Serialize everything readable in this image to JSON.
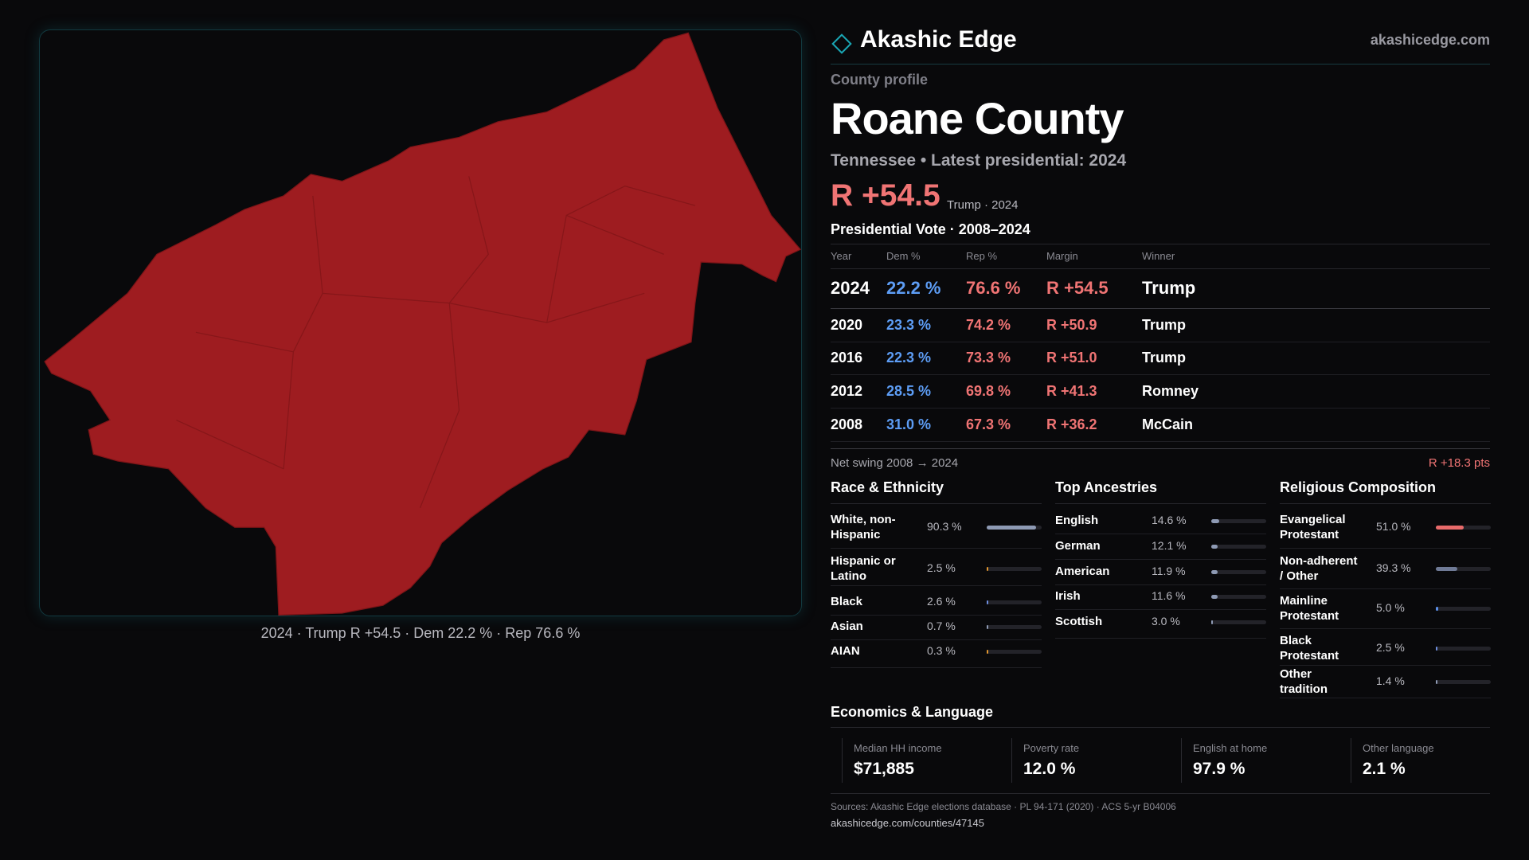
{
  "header": {
    "brand": "Akashic Edge",
    "site": "akashicedge.com"
  },
  "map": {
    "caption": "2024 · Trump R +54.5 · Dem 22.2 % · Rep 76.6 %"
  },
  "profile": {
    "kicker": "County profile",
    "title": "Roane County",
    "subtitle": "Tennessee • Latest presidential: 2024",
    "headline_margin": "R +54.5",
    "headline_note": "Trump · 2024"
  },
  "vote_table": {
    "title": "Presidential Vote · 2008–2024",
    "columns": [
      "Year",
      "Dem %",
      "Rep %",
      "Margin",
      "Winner"
    ],
    "rows": [
      [
        "2024",
        "22.2 %",
        "76.6 %",
        "R +54.5",
        "Trump"
      ],
      [
        "2020",
        "23.3 %",
        "74.2 %",
        "R +50.9",
        "Trump"
      ],
      [
        "2016",
        "22.3 %",
        "73.3 %",
        "R +51.0",
        "Trump"
      ],
      [
        "2012",
        "28.5 %",
        "69.8 %",
        "R +41.3",
        "Romney"
      ],
      [
        "2008",
        "31.0 %",
        "67.3 %",
        "R +36.2",
        "McCain"
      ]
    ],
    "swing_label": "Net swing 2008 → 2024",
    "swing_value": "R +18.3 pts"
  },
  "race": {
    "title": "Race & Ethnicity",
    "rows": [
      {
        "label": "White, non-Hispanic",
        "value": 90.3,
        "value_label": "90.3 %",
        "color": "#8e9ab4"
      },
      {
        "label": "Hispanic or Latino",
        "value": 2.5,
        "value_label": "2.5 %",
        "color": "#e0952f"
      },
      {
        "label": "Black",
        "value": 2.6,
        "value_label": "2.6 %",
        "color": "#6f8fe0"
      },
      {
        "label": "Asian",
        "value": 0.7,
        "value_label": "0.7 %",
        "color": "#8e9ab4"
      },
      {
        "label": "AIAN",
        "value": 0.3,
        "value_label": "0.3 %",
        "color": "#e0952f"
      }
    ]
  },
  "ancestry": {
    "title": "Top Ancestries",
    "rows": [
      {
        "label": "English",
        "value": 14.6,
        "value_label": "14.6 %",
        "color": "#8e9ab4"
      },
      {
        "label": "German",
        "value": 12.1,
        "value_label": "12.1 %",
        "color": "#8e9ab4"
      },
      {
        "label": "American",
        "value": 11.9,
        "value_label": "11.9 %",
        "color": "#8e9ab4"
      },
      {
        "label": "Irish",
        "value": 11.6,
        "value_label": "11.6 %",
        "color": "#8e9ab4"
      },
      {
        "label": "Scottish",
        "value": 3.0,
        "value_label": "3.0 %",
        "color": "#8e9ab4"
      }
    ]
  },
  "religion": {
    "title": "Religious Composition",
    "rows": [
      {
        "label": "Evangelical Protestant",
        "value": 51.0,
        "value_label": "51.0 %",
        "color": "#e86a6a"
      },
      {
        "label": "Non-adherent / Other",
        "value": 39.3,
        "value_label": "39.3 %",
        "color": "#6f7a96"
      },
      {
        "label": "Mainline Protestant",
        "value": 5.0,
        "value_label": "5.0 %",
        "color": "#5b8fe8"
      },
      {
        "label": "Black Protestant",
        "value": 2.5,
        "value_label": "2.5 %",
        "color": "#6f8fe0"
      },
      {
        "label": "Other tradition",
        "value": 1.4,
        "value_label": "1.4 %",
        "color": "#8e9ab4"
      }
    ]
  },
  "economics": {
    "title": "Economics & Language",
    "items": [
      {
        "label": "Median HH income",
        "value": "$71,885"
      },
      {
        "label": "Poverty rate",
        "value": "12.0 %"
      },
      {
        "label": "English at home",
        "value": "97.9 %"
      },
      {
        "label": "Other language",
        "value": "2.1 %"
      }
    ]
  },
  "footer": {
    "sources": "Sources: Akashic Edge elections database · PL 94-171 (2020) · ACS 5-yr B04006",
    "url": "akashicedge.com/counties/47145"
  }
}
